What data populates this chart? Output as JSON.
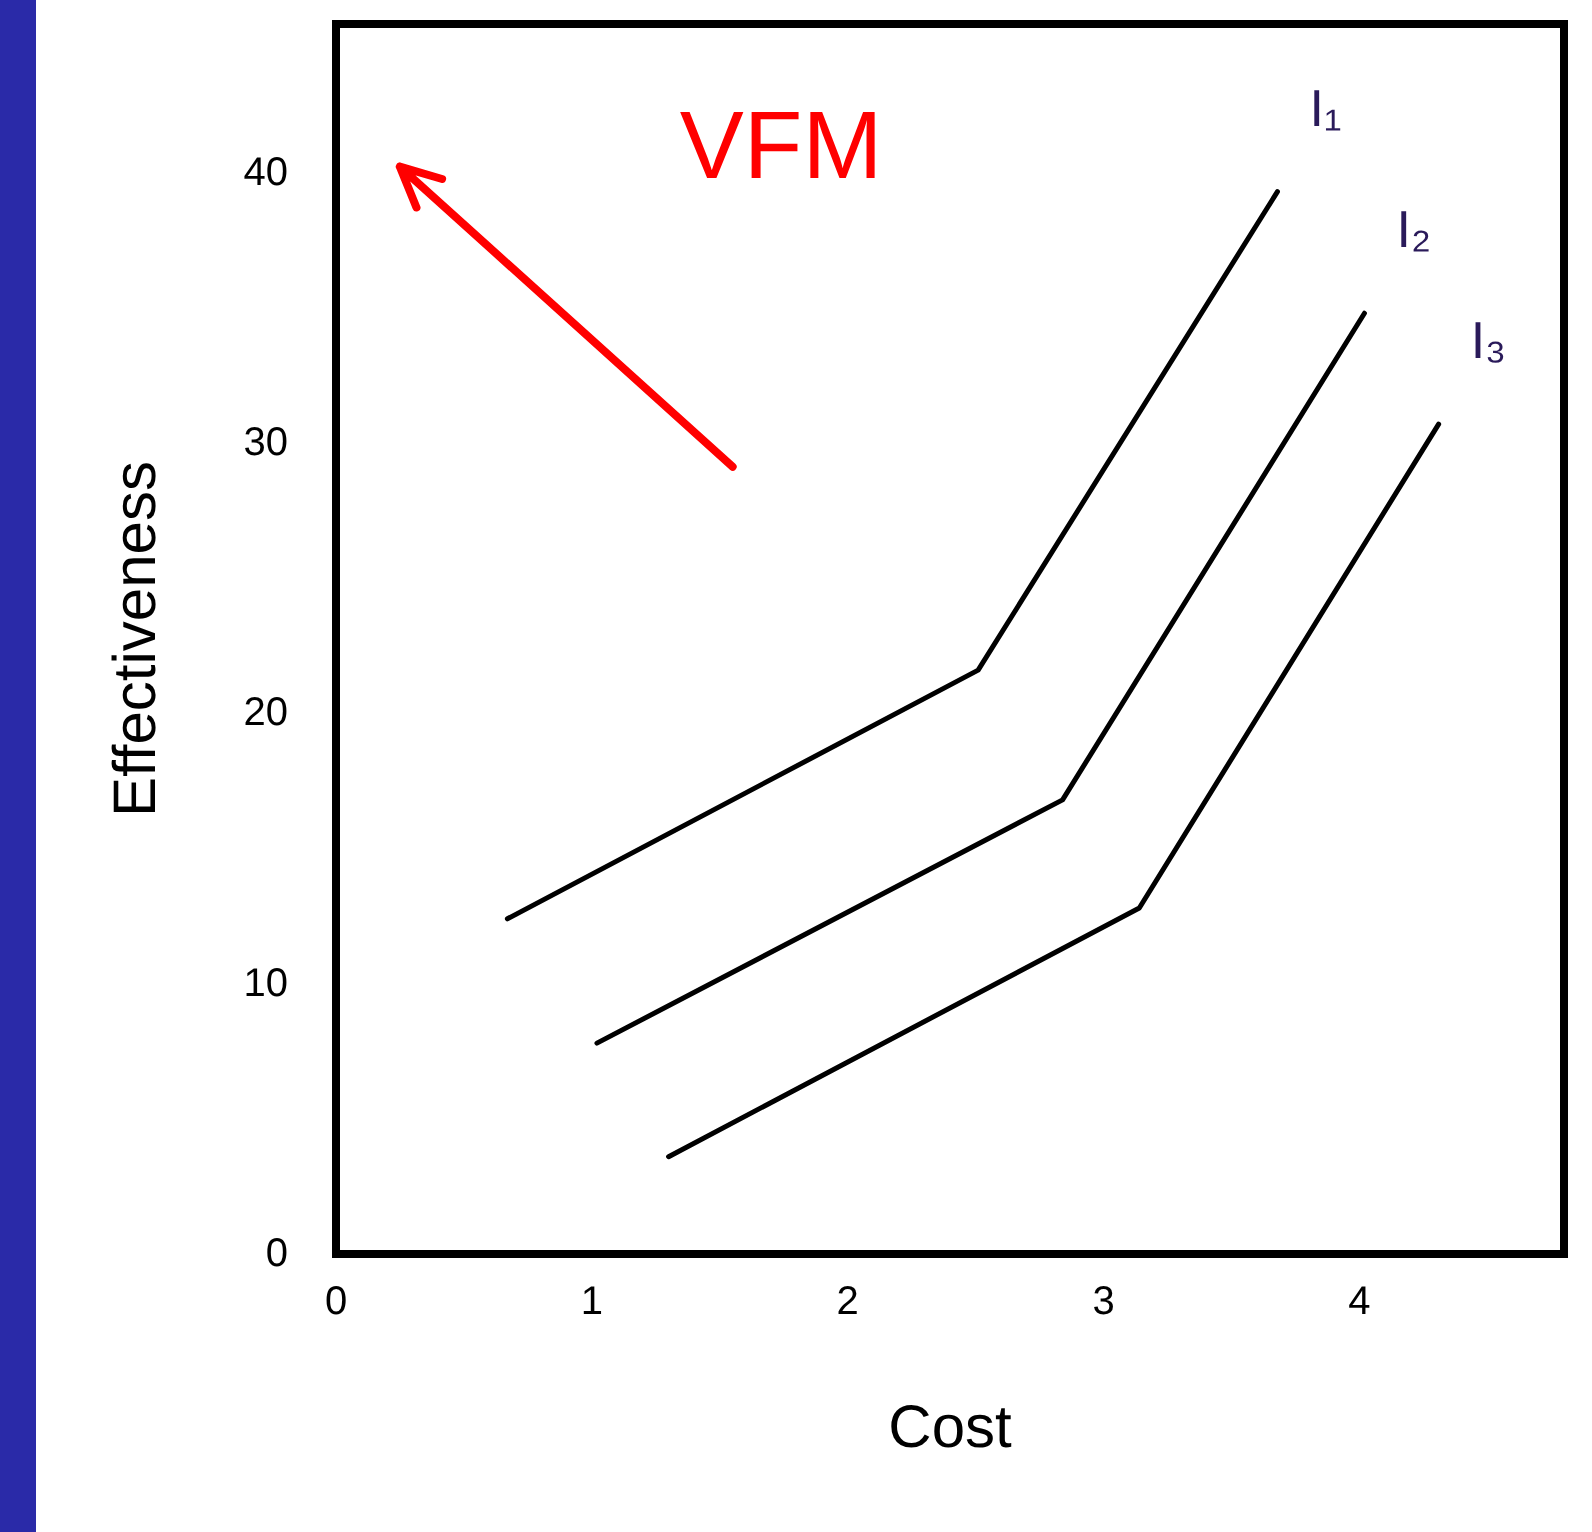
{
  "chart_data": {
    "type": "line",
    "xlabel": "Cost",
    "ylabel": "Effectiveness",
    "xlim": [
      0,
      4.8
    ],
    "xticks": [
      0,
      1,
      2,
      3,
      4
    ],
    "ylim": [
      0,
      45.5
    ],
    "yticks": [
      0,
      10,
      20,
      30,
      40
    ],
    "grid": false,
    "legend": false,
    "marker": "none",
    "line_style": "solid",
    "series": [
      {
        "name": "I₁",
        "color": "#000000",
        "x": [
          0.67,
          2.51,
          3.68
        ],
        "values": [
          12.4,
          21.6,
          39.3
        ]
      },
      {
        "name": "I₂",
        "color": "#000000",
        "x": [
          1.02,
          2.84,
          4.02
        ],
        "values": [
          7.8,
          16.8,
          34.8
        ]
      },
      {
        "name": "I₃",
        "color": "#000000",
        "x": [
          1.3,
          3.14,
          4.31
        ],
        "values": [
          3.6,
          12.8,
          30.7
        ]
      }
    ],
    "annotations": [
      "VFM"
    ]
  }
}
